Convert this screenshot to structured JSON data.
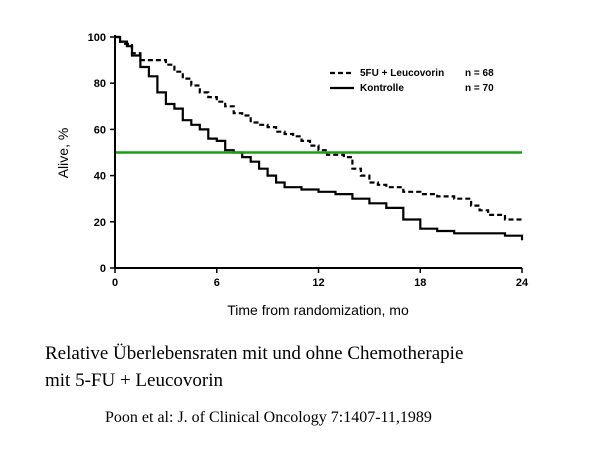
{
  "chart_data": {
    "type": "line",
    "title": "",
    "xlabel": "Time from randomization, mo",
    "ylabel": "Alive, %",
    "xlim": [
      0,
      24
    ],
    "ylim": [
      0,
      100
    ],
    "x_ticks": [
      0,
      6,
      12,
      18,
      24
    ],
    "y_ticks": [
      0,
      20,
      40,
      60,
      80,
      100
    ],
    "grid": false,
    "legend_position": "top-right",
    "reference_line": {
      "y": 50,
      "color": "#1a9e1a"
    },
    "series": [
      {
        "name": "5FU + Leucovorin",
        "n_label": "n = 68",
        "style": "dashed",
        "color": "#000000",
        "points": [
          [
            0,
            100
          ],
          [
            0.3,
            98
          ],
          [
            0.6,
            97
          ],
          [
            1,
            93
          ],
          [
            1.5,
            90
          ],
          [
            2,
            90
          ],
          [
            3,
            88
          ],
          [
            3.5,
            85
          ],
          [
            4,
            82
          ],
          [
            4.5,
            79
          ],
          [
            5,
            76
          ],
          [
            5.5,
            74
          ],
          [
            6,
            72
          ],
          [
            6.5,
            70
          ],
          [
            7,
            67
          ],
          [
            7.5,
            66
          ],
          [
            8,
            63
          ],
          [
            8.5,
            62
          ],
          [
            9,
            61
          ],
          [
            9.5,
            59
          ],
          [
            10,
            58
          ],
          [
            10.5,
            57
          ],
          [
            11,
            55
          ],
          [
            11.5,
            53
          ],
          [
            12,
            51
          ],
          [
            12.5,
            49
          ],
          [
            13,
            49
          ],
          [
            13.5,
            48
          ],
          [
            14,
            43
          ],
          [
            14.5,
            40
          ],
          [
            15,
            37
          ],
          [
            15.5,
            36
          ],
          [
            16,
            35
          ],
          [
            17,
            33
          ],
          [
            18,
            32
          ],
          [
            19,
            31
          ],
          [
            20,
            30
          ],
          [
            21,
            27
          ],
          [
            21.5,
            25
          ],
          [
            22,
            23
          ],
          [
            23,
            21
          ],
          [
            24,
            21
          ]
        ]
      },
      {
        "name": "Kontrolle",
        "n_label": "n = 70",
        "style": "solid",
        "color": "#000000",
        "points": [
          [
            0,
            100
          ],
          [
            0.3,
            98
          ],
          [
            0.7,
            96
          ],
          [
            1,
            92
          ],
          [
            1.5,
            87
          ],
          [
            2,
            83
          ],
          [
            2.5,
            76
          ],
          [
            3,
            71
          ],
          [
            3.5,
            69
          ],
          [
            4,
            64
          ],
          [
            4.5,
            62
          ],
          [
            5,
            60
          ],
          [
            5.5,
            56
          ],
          [
            6,
            55
          ],
          [
            6.5,
            51
          ],
          [
            7,
            50
          ],
          [
            7.5,
            48
          ],
          [
            8,
            46
          ],
          [
            8.5,
            43
          ],
          [
            9,
            40
          ],
          [
            9.5,
            37
          ],
          [
            10,
            35
          ],
          [
            11,
            34
          ],
          [
            12,
            33
          ],
          [
            13,
            32
          ],
          [
            14,
            30
          ],
          [
            15,
            28
          ],
          [
            16,
            26
          ],
          [
            17,
            21
          ],
          [
            18,
            17
          ],
          [
            19,
            16
          ],
          [
            20,
            15
          ],
          [
            21,
            15
          ],
          [
            22,
            15
          ],
          [
            23,
            14
          ],
          [
            23.7,
            14
          ],
          [
            24,
            12
          ]
        ]
      }
    ]
  },
  "caption": {
    "line1": "Relative Überlebensraten mit und ohne Chemotherapie",
    "line2": "mit 5-FU + Leucovorin"
  },
  "citation": "Poon et al: J. of Clinical Oncology 7:1407-11,1989"
}
